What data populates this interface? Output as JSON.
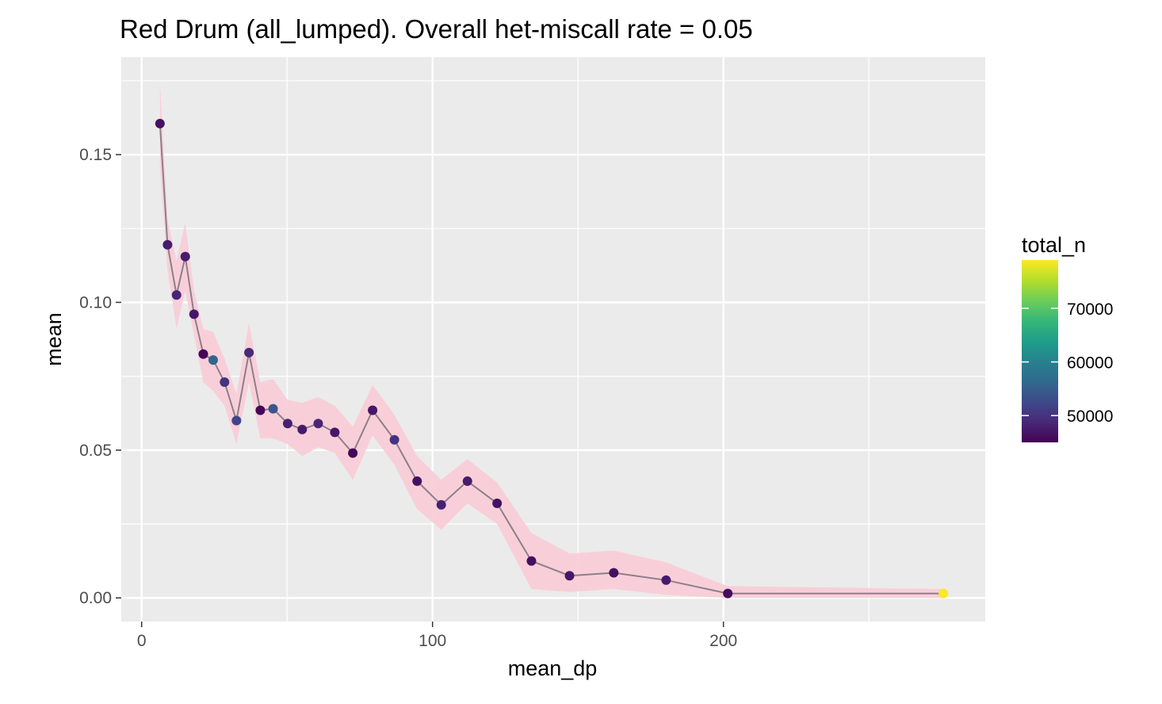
{
  "chart_data": {
    "type": "line",
    "title": "Red Drum (all_lumped).  Overall het-miscall rate = 0.05",
    "xlabel": "mean_dp",
    "ylabel": "mean",
    "xlim": [
      -7,
      290
    ],
    "ylim": [
      -0.008,
      0.183
    ],
    "x_ticks": [
      0,
      100,
      200
    ],
    "x_tick_labels": [
      "0",
      "100",
      "200"
    ],
    "y_ticks": [
      0,
      0.05,
      0.1,
      0.15
    ],
    "y_tick_labels": [
      "0.00",
      "0.05",
      "0.10",
      "0.15"
    ],
    "grid": true,
    "legend": {
      "title": "total_n",
      "placement": "right",
      "range": [
        45000,
        79000
      ],
      "ticks": [
        50000,
        60000,
        70000
      ],
      "tick_labels": [
        "50000",
        "60000",
        "70000"
      ],
      "colors": [
        "#440154",
        "#482878",
        "#3E4A89",
        "#31688E",
        "#26828E",
        "#1F9E89",
        "#35B779",
        "#6DCD59",
        "#B4DE2C",
        "#FDE725"
      ]
    },
    "colors": {
      "line": "#8c7f8a",
      "ribbon": "#f9cdd8",
      "panel": "#ebebeb",
      "grid": "#ffffff"
    },
    "series": [
      {
        "x": [
          6.3,
          8.9,
          12.0,
          15.0,
          18.0,
          21.2,
          24.6,
          28.5,
          32.6,
          36.9,
          40.8,
          45.2,
          50.2,
          55.2,
          60.7,
          66.4,
          72.6,
          79.4,
          86.9,
          94.7,
          103.0,
          112.0,
          122.2,
          134.0,
          147.1,
          162.3,
          180.3,
          201.5,
          275.6
        ],
        "y": [
          0.1605,
          0.1195,
          0.1025,
          0.1155,
          0.096,
          0.0825,
          0.0805,
          0.073,
          0.06,
          0.083,
          0.0635,
          0.064,
          0.059,
          0.057,
          0.059,
          0.056,
          0.049,
          0.0635,
          0.0535,
          0.0395,
          0.0315,
          0.0395,
          0.032,
          0.0125,
          0.0075,
          0.0085,
          0.006,
          0.0015,
          0.0015
        ],
        "lower": [
          0.146,
          0.111,
          0.091,
          0.104,
          0.089,
          0.073,
          0.07,
          0.065,
          0.052,
          0.073,
          0.054,
          0.054,
          0.052,
          0.048,
          0.051,
          0.049,
          0.04,
          0.055,
          0.045,
          0.03,
          0.023,
          0.032,
          0.025,
          0.003,
          0.002,
          0.003,
          0.001,
          0.0,
          0.0
        ],
        "upper": [
          0.174,
          0.128,
          0.114,
          0.127,
          0.104,
          0.091,
          0.09,
          0.081,
          0.069,
          0.093,
          0.073,
          0.074,
          0.067,
          0.066,
          0.068,
          0.065,
          0.058,
          0.072,
          0.062,
          0.048,
          0.04,
          0.047,
          0.039,
          0.022,
          0.015,
          0.016,
          0.012,
          0.004,
          0.003
        ],
        "total_n": [
          46500,
          47500,
          48500,
          47500,
          47000,
          45500,
          56000,
          50000,
          52000,
          49000,
          45500,
          54000,
          48000,
          47500,
          48500,
          47000,
          45500,
          47000,
          50000,
          46500,
          48000,
          47500,
          46500,
          46500,
          47000,
          46500,
          47500,
          46000,
          79000
        ]
      }
    ]
  }
}
